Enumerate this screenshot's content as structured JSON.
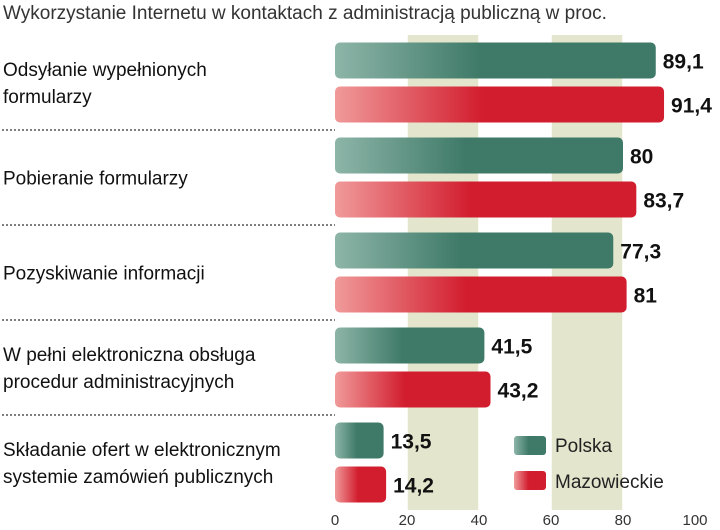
{
  "chart_data": {
    "type": "bar",
    "orientation": "horizontal",
    "title": "Wykorzystanie Internetu w kontaktach z administracją publiczną w proc.",
    "categories": [
      [
        "Odsyłanie wypełnionych",
        "formularzy"
      ],
      [
        "Pobieranie formularzy"
      ],
      [
        "Pozyskiwanie informacji"
      ],
      [
        "W pełni elektroniczna obsługa",
        "procedur administracyjnych"
      ],
      [
        "Składanie ofert w elektronicznym",
        "systemie zamówień publicznych"
      ]
    ],
    "series": [
      {
        "name": "Polska",
        "values": [
          89.1,
          80,
          77.3,
          41.5,
          13.5
        ],
        "labels": [
          "89,1",
          "80",
          "77,3",
          "41,5",
          "13,5"
        ],
        "color": "#3f7a68",
        "color_light": "#8db5a8"
      },
      {
        "name": "Mazowieckie",
        "values": [
          91.4,
          83.7,
          81,
          43.2,
          14.2
        ],
        "labels": [
          "91,4",
          "83,7",
          "81",
          "43,2",
          "14,2"
        ],
        "color": "#d21d2e",
        "color_light": "#f09a9a"
      }
    ],
    "xlim": [
      0,
      100
    ],
    "ticks": [
      0,
      20,
      40,
      60,
      80,
      100
    ],
    "tick_labels": [
      "0",
      "20",
      "40",
      "60",
      "80",
      "100"
    ],
    "legend_position": "bottom-right"
  }
}
